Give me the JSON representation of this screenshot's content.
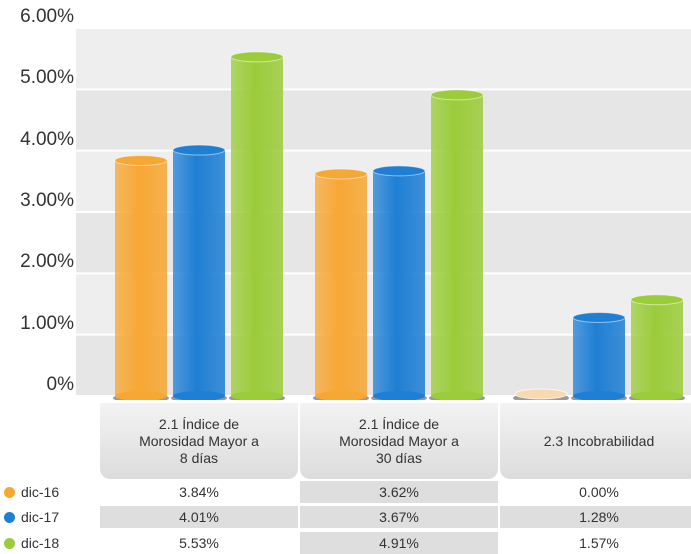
{
  "chart_data": {
    "type": "bar",
    "categories": [
      "2.1 Índice de\nMorosidad Mayor a\n8 días",
      "2.1 Índice de\nMorosidad Mayor a\n30 días",
      "2.3 Incobrabilidad"
    ],
    "series": [
      {
        "name": "dic-16",
        "color": "#f7a733",
        "values": [
          3.84,
          3.62,
          0.0
        ],
        "labels": [
          "3.84%",
          "3.62%",
          "0.00%"
        ]
      },
      {
        "name": "dic-17",
        "color": "#1f7fd4",
        "values": [
          4.01,
          3.67,
          1.28
        ],
        "labels": [
          "4.01%",
          "3.67%",
          "1.28%"
        ]
      },
      {
        "name": "dic-18",
        "color": "#9bcc3a",
        "values": [
          5.53,
          4.91,
          1.57
        ],
        "labels": [
          "5.53%",
          "4.91%",
          "1.57%"
        ]
      }
    ],
    "y_ticks": [
      "0%",
      "1.00%",
      "2.00%",
      "3.00%",
      "4.00%",
      "5.00%",
      "6.00%"
    ],
    "ylim": [
      0,
      6
    ],
    "grid": true,
    "legend": "bottom-left, in data table"
  }
}
